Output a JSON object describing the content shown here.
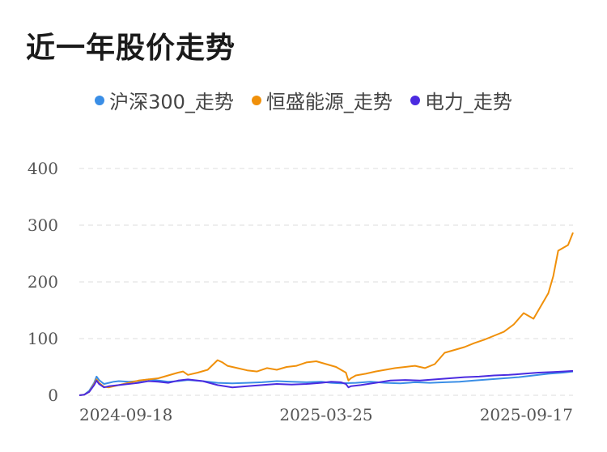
{
  "header": {
    "title": "近一年股价走势"
  },
  "colors": {
    "hs300": "#3a8ee6",
    "hengsheng": "#f0900a",
    "electric": "#4b2be0",
    "grid": "#dddddd"
  },
  "chart_data": {
    "type": "line",
    "title": "近一年股价走势",
    "xlabel": "",
    "ylabel": "",
    "ylim": [
      0,
      400
    ],
    "y_ticks": [
      0,
      100,
      200,
      300,
      400
    ],
    "x_tick_labels": [
      "2024-09-18",
      "2025-03-25",
      "2025-09-17"
    ],
    "x_range": [
      0,
      100
    ],
    "x_tick_positions": [
      0,
      50,
      100
    ],
    "grid": true,
    "legend_position": "top-center",
    "series": [
      {
        "name": "沪深300_走势",
        "color": "#3a8ee6",
        "x": [
          0,
          1,
          2,
          3,
          3.5,
          4,
          5,
          6,
          7,
          8,
          10,
          12,
          14,
          16,
          18,
          20,
          22,
          25,
          28,
          31,
          34,
          37,
          40,
          43,
          46,
          49,
          51,
          53,
          56,
          59,
          62,
          65,
          68,
          71,
          74,
          77,
          80,
          83,
          86,
          89,
          92,
          95,
          98,
          100
        ],
        "values": [
          0,
          1,
          8,
          22,
          33,
          27,
          20,
          22,
          24,
          25,
          24,
          25,
          28,
          26,
          24,
          25,
          27,
          25,
          22,
          21,
          22,
          23,
          25,
          24,
          23,
          24,
          22,
          21,
          22,
          24,
          22,
          21,
          23,
          22,
          23,
          24,
          26,
          28,
          30,
          32,
          35,
          38,
          40,
          42
        ]
      },
      {
        "name": "恒盛能源_走势",
        "color": "#f0900a",
        "x": [
          0,
          1,
          2,
          3,
          3.5,
          4,
          5,
          6,
          8,
          10,
          12,
          14,
          16,
          18,
          20,
          21,
          22,
          24,
          26,
          28,
          29,
          30,
          32,
          34,
          36,
          38,
          40,
          42,
          44,
          46,
          48,
          50,
          52,
          54,
          54.5,
          55,
          56,
          58,
          60,
          62,
          64,
          66,
          68,
          70,
          72,
          73,
          74,
          76,
          78,
          80,
          82,
          84,
          86,
          88,
          90,
          91,
          92,
          93,
          94,
          95,
          96,
          97,
          98,
          99,
          100
        ],
        "values": [
          0,
          1,
          6,
          20,
          28,
          22,
          15,
          14,
          18,
          22,
          26,
          28,
          30,
          35,
          40,
          42,
          36,
          40,
          45,
          62,
          58,
          52,
          48,
          44,
          42,
          48,
          45,
          50,
          52,
          58,
          60,
          55,
          50,
          40,
          26,
          30,
          35,
          38,
          42,
          45,
          48,
          50,
          52,
          48,
          55,
          65,
          75,
          80,
          85,
          92,
          98,
          105,
          112,
          125,
          145,
          140,
          135,
          150,
          165,
          180,
          210,
          255,
          260,
          265,
          287
        ]
      },
      {
        "name": "电力_走势",
        "color": "#4b2be0",
        "x": [
          0,
          1,
          2,
          3,
          3.5,
          4,
          5,
          6,
          8,
          10,
          12,
          14,
          16,
          18,
          20,
          22,
          25,
          28,
          31,
          34,
          37,
          40,
          43,
          46,
          49,
          51,
          53,
          54,
          54.5,
          55,
          57,
          60,
          63,
          66,
          69,
          72,
          75,
          78,
          81,
          84,
          87,
          90,
          93,
          96,
          98,
          100
        ],
        "values": [
          0,
          1,
          6,
          18,
          26,
          20,
          14,
          16,
          18,
          20,
          22,
          25,
          24,
          22,
          26,
          28,
          25,
          18,
          14,
          16,
          18,
          20,
          19,
          20,
          22,
          24,
          23,
          20,
          14,
          16,
          18,
          22,
          26,
          27,
          26,
          28,
          30,
          32,
          33,
          35,
          36,
          38,
          40,
          41,
          42,
          43
        ]
      }
    ]
  }
}
